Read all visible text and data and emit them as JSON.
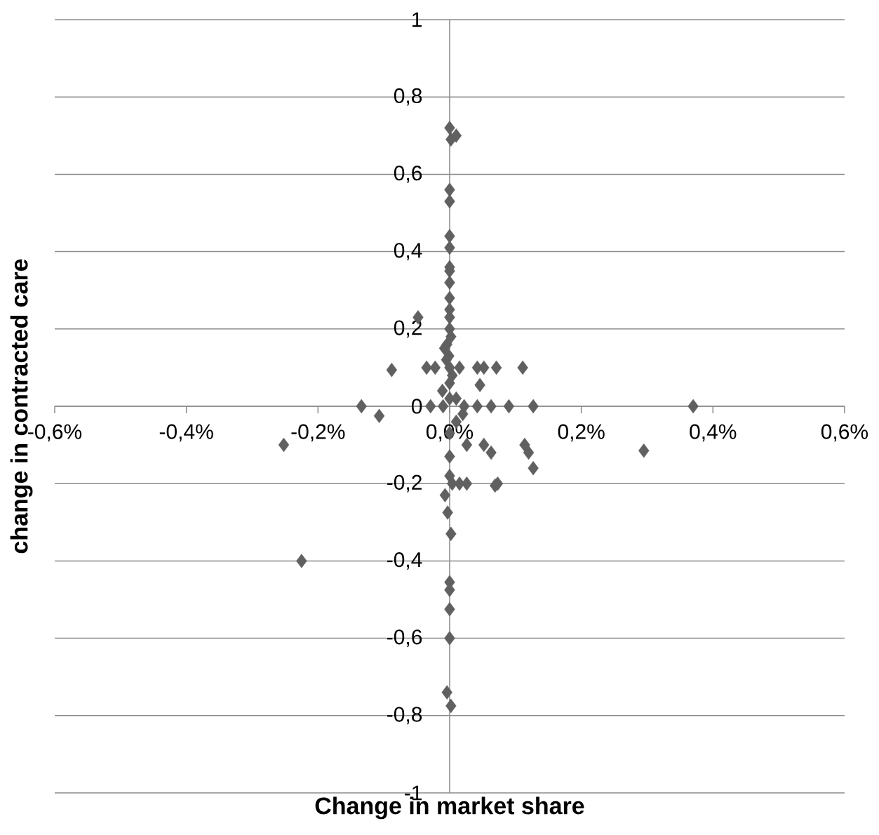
{
  "chart_data": {
    "type": "scatter",
    "xlabel": "Change in market share",
    "ylabel": "change in contracted care",
    "xlim": [
      -0.6,
      0.6
    ],
    "ylim": [
      -1,
      1
    ],
    "xticks": [
      {
        "value": -0.6,
        "label": "-0,6%"
      },
      {
        "value": -0.4,
        "label": "-0,4%"
      },
      {
        "value": -0.2,
        "label": "-0,2%"
      },
      {
        "value": 0,
        "label": "0,0%"
      },
      {
        "value": 0.2,
        "label": "0,2%"
      },
      {
        "value": 0.4,
        "label": "0,4%"
      },
      {
        "value": 0.6,
        "label": "0,6%"
      }
    ],
    "yticks": [
      {
        "value": -1,
        "label": "-1"
      },
      {
        "value": -0.8,
        "label": "-0,8"
      },
      {
        "value": -0.6,
        "label": "-0,6"
      },
      {
        "value": -0.4,
        "label": "-0,4"
      },
      {
        "value": -0.2,
        "label": "-0,2"
      },
      {
        "value": 0,
        "label": "0"
      },
      {
        "value": 0.2,
        "label": "0,2"
      },
      {
        "value": 0.4,
        "label": "0,4"
      },
      {
        "value": 0.6,
        "label": "0,6"
      },
      {
        "value": 0.8,
        "label": "0,8"
      },
      {
        "value": 1,
        "label": "1"
      }
    ],
    "grid": "y",
    "marker": "diamond",
    "color": "#606060",
    "x": [
      0,
      0.002,
      0.01,
      0,
      0,
      0,
      0,
      0,
      0,
      0,
      0,
      0,
      0,
      0,
      0.002,
      -0.004,
      -0.008,
      -0.001,
      -0.005,
      0,
      0.004,
      0,
      -0.048,
      -0.088,
      -0.035,
      -0.022,
      -0.011,
      -0.029,
      -0.134,
      -0.107,
      -0.252,
      -0.225,
      0.015,
      0.042,
      0.052,
      0.071,
      0.111,
      0.046,
      0.022,
      0.042,
      0.063,
      0.09,
      0.127,
      0.37,
      0.01,
      0.02,
      0.026,
      0.052,
      0.063,
      0.114,
      0.12,
      0.127,
      0.295,
      0,
      0,
      0,
      0.004,
      0.015,
      0.026,
      0.069,
      0.073,
      -0.007,
      -0.003,
      0.002,
      0,
      0,
      0,
      0,
      -0.004,
      0.002,
      0,
      -0.01,
      0.01
    ],
    "values": [
      0.72,
      0.69,
      0.7,
      0.56,
      0.53,
      0.44,
      0.41,
      0.36,
      0.35,
      0.32,
      0.28,
      0.25,
      0.23,
      0.2,
      0.18,
      0.16,
      0.15,
      0.13,
      0.12,
      0.1,
      0.08,
      0.06,
      0.23,
      0.094,
      0.1,
      0.1,
      0.04,
      0,
      0,
      -0.025,
      -0.1,
      -0.4,
      0.1,
      0.1,
      0.1,
      0.1,
      0.1,
      0.055,
      0,
      0,
      0,
      0,
      0,
      0,
      -0.04,
      -0.02,
      -0.1,
      -0.1,
      -0.12,
      -0.1,
      -0.12,
      -0.16,
      -0.115,
      -0.07,
      -0.13,
      -0.18,
      -0.2,
      -0.2,
      -0.2,
      -0.205,
      -0.2,
      -0.23,
      -0.275,
      -0.33,
      -0.455,
      -0.475,
      -0.525,
      -0.6,
      -0.74,
      -0.775,
      0.02,
      0,
      0.02
    ]
  }
}
